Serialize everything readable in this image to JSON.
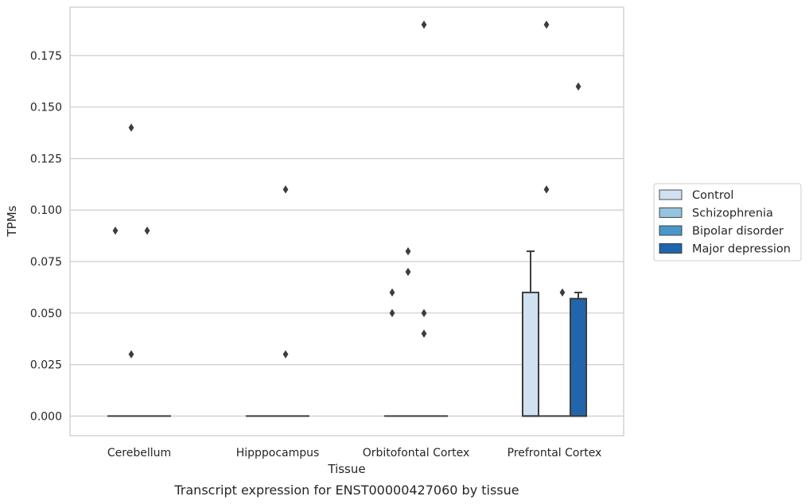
{
  "chart_data": {
    "type": "box",
    "title": "",
    "caption": "Transcript expression for ENST00000427060 by tissue",
    "xlabel": "Tissue",
    "ylabel": "TPMs",
    "ylim": [
      -0.0095,
      0.1985
    ],
    "yticks": [
      "0.000",
      "0.025",
      "0.050",
      "0.075",
      "0.100",
      "0.125",
      "0.150",
      "0.175"
    ],
    "ytick_values": [
      0,
      0.025,
      0.05,
      0.075,
      0.1,
      0.125,
      0.15,
      0.175
    ],
    "grid": true,
    "legend_position": "right",
    "categories": [
      "Cerebellum",
      "Hipppocampus",
      "Orbitofontal Cortex",
      "Prefrontal Cortex"
    ],
    "series": [
      {
        "name": "Control",
        "color": "#d0e1f2",
        "boxes": [
          {
            "q1": 0,
            "median": 0,
            "q3": 0,
            "whisker_low": 0,
            "whisker_high": 0,
            "outliers": [
              0.09
            ]
          },
          {
            "q1": 0,
            "median": 0,
            "q3": 0,
            "whisker_low": 0,
            "whisker_high": 0,
            "outliers": []
          },
          {
            "q1": 0,
            "median": 0,
            "q3": 0,
            "whisker_low": 0,
            "whisker_high": 0,
            "outliers": [
              0.06,
              0.05
            ]
          },
          {
            "q1": 0,
            "median": 0,
            "q3": 0.06,
            "whisker_low": 0,
            "whisker_high": 0.08,
            "outliers": []
          }
        ]
      },
      {
        "name": "Schizophrenia",
        "color": "#94c4df",
        "boxes": [
          {
            "q1": 0,
            "median": 0,
            "q3": 0,
            "whisker_low": 0,
            "whisker_high": 0,
            "outliers": [
              0.14,
              0.03
            ]
          },
          {
            "q1": 0,
            "median": 0,
            "q3": 0,
            "whisker_low": 0,
            "whisker_high": 0,
            "outliers": []
          },
          {
            "q1": 0,
            "median": 0,
            "q3": 0,
            "whisker_low": 0,
            "whisker_high": 0,
            "outliers": [
              0.08,
              0.07
            ]
          },
          {
            "q1": 0,
            "median": 0,
            "q3": 0,
            "whisker_low": 0,
            "whisker_high": 0,
            "outliers": [
              0.19,
              0.11
            ]
          }
        ]
      },
      {
        "name": "Bipolar disorder",
        "color": "#4a98c9",
        "boxes": [
          {
            "q1": 0,
            "median": 0,
            "q3": 0,
            "whisker_low": 0,
            "whisker_high": 0,
            "outliers": [
              0.09
            ]
          },
          {
            "q1": 0,
            "median": 0,
            "q3": 0,
            "whisker_low": 0,
            "whisker_high": 0,
            "outliers": [
              0.11,
              0.03
            ]
          },
          {
            "q1": 0,
            "median": 0,
            "q3": 0,
            "whisker_low": 0,
            "whisker_high": 0,
            "outliers": [
              0.19,
              0.05,
              0.04
            ]
          },
          {
            "q1": 0,
            "median": 0,
            "q3": 0,
            "whisker_low": 0,
            "whisker_high": 0,
            "outliers": [
              0.06
            ]
          }
        ]
      },
      {
        "name": "Major depression",
        "color": "#2166ac",
        "boxes": [
          {
            "q1": 0,
            "median": 0,
            "q3": 0,
            "whisker_low": 0,
            "whisker_high": 0,
            "outliers": []
          },
          {
            "q1": 0,
            "median": 0,
            "q3": 0,
            "whisker_low": 0,
            "whisker_high": 0,
            "outliers": []
          },
          {
            "q1": 0,
            "median": 0,
            "q3": 0,
            "whisker_low": 0,
            "whisker_high": 0,
            "outliers": []
          },
          {
            "q1": 0,
            "median": 0,
            "q3": 0.057,
            "whisker_low": 0,
            "whisker_high": 0.06,
            "outliers": [
              0.16
            ]
          }
        ]
      }
    ]
  }
}
